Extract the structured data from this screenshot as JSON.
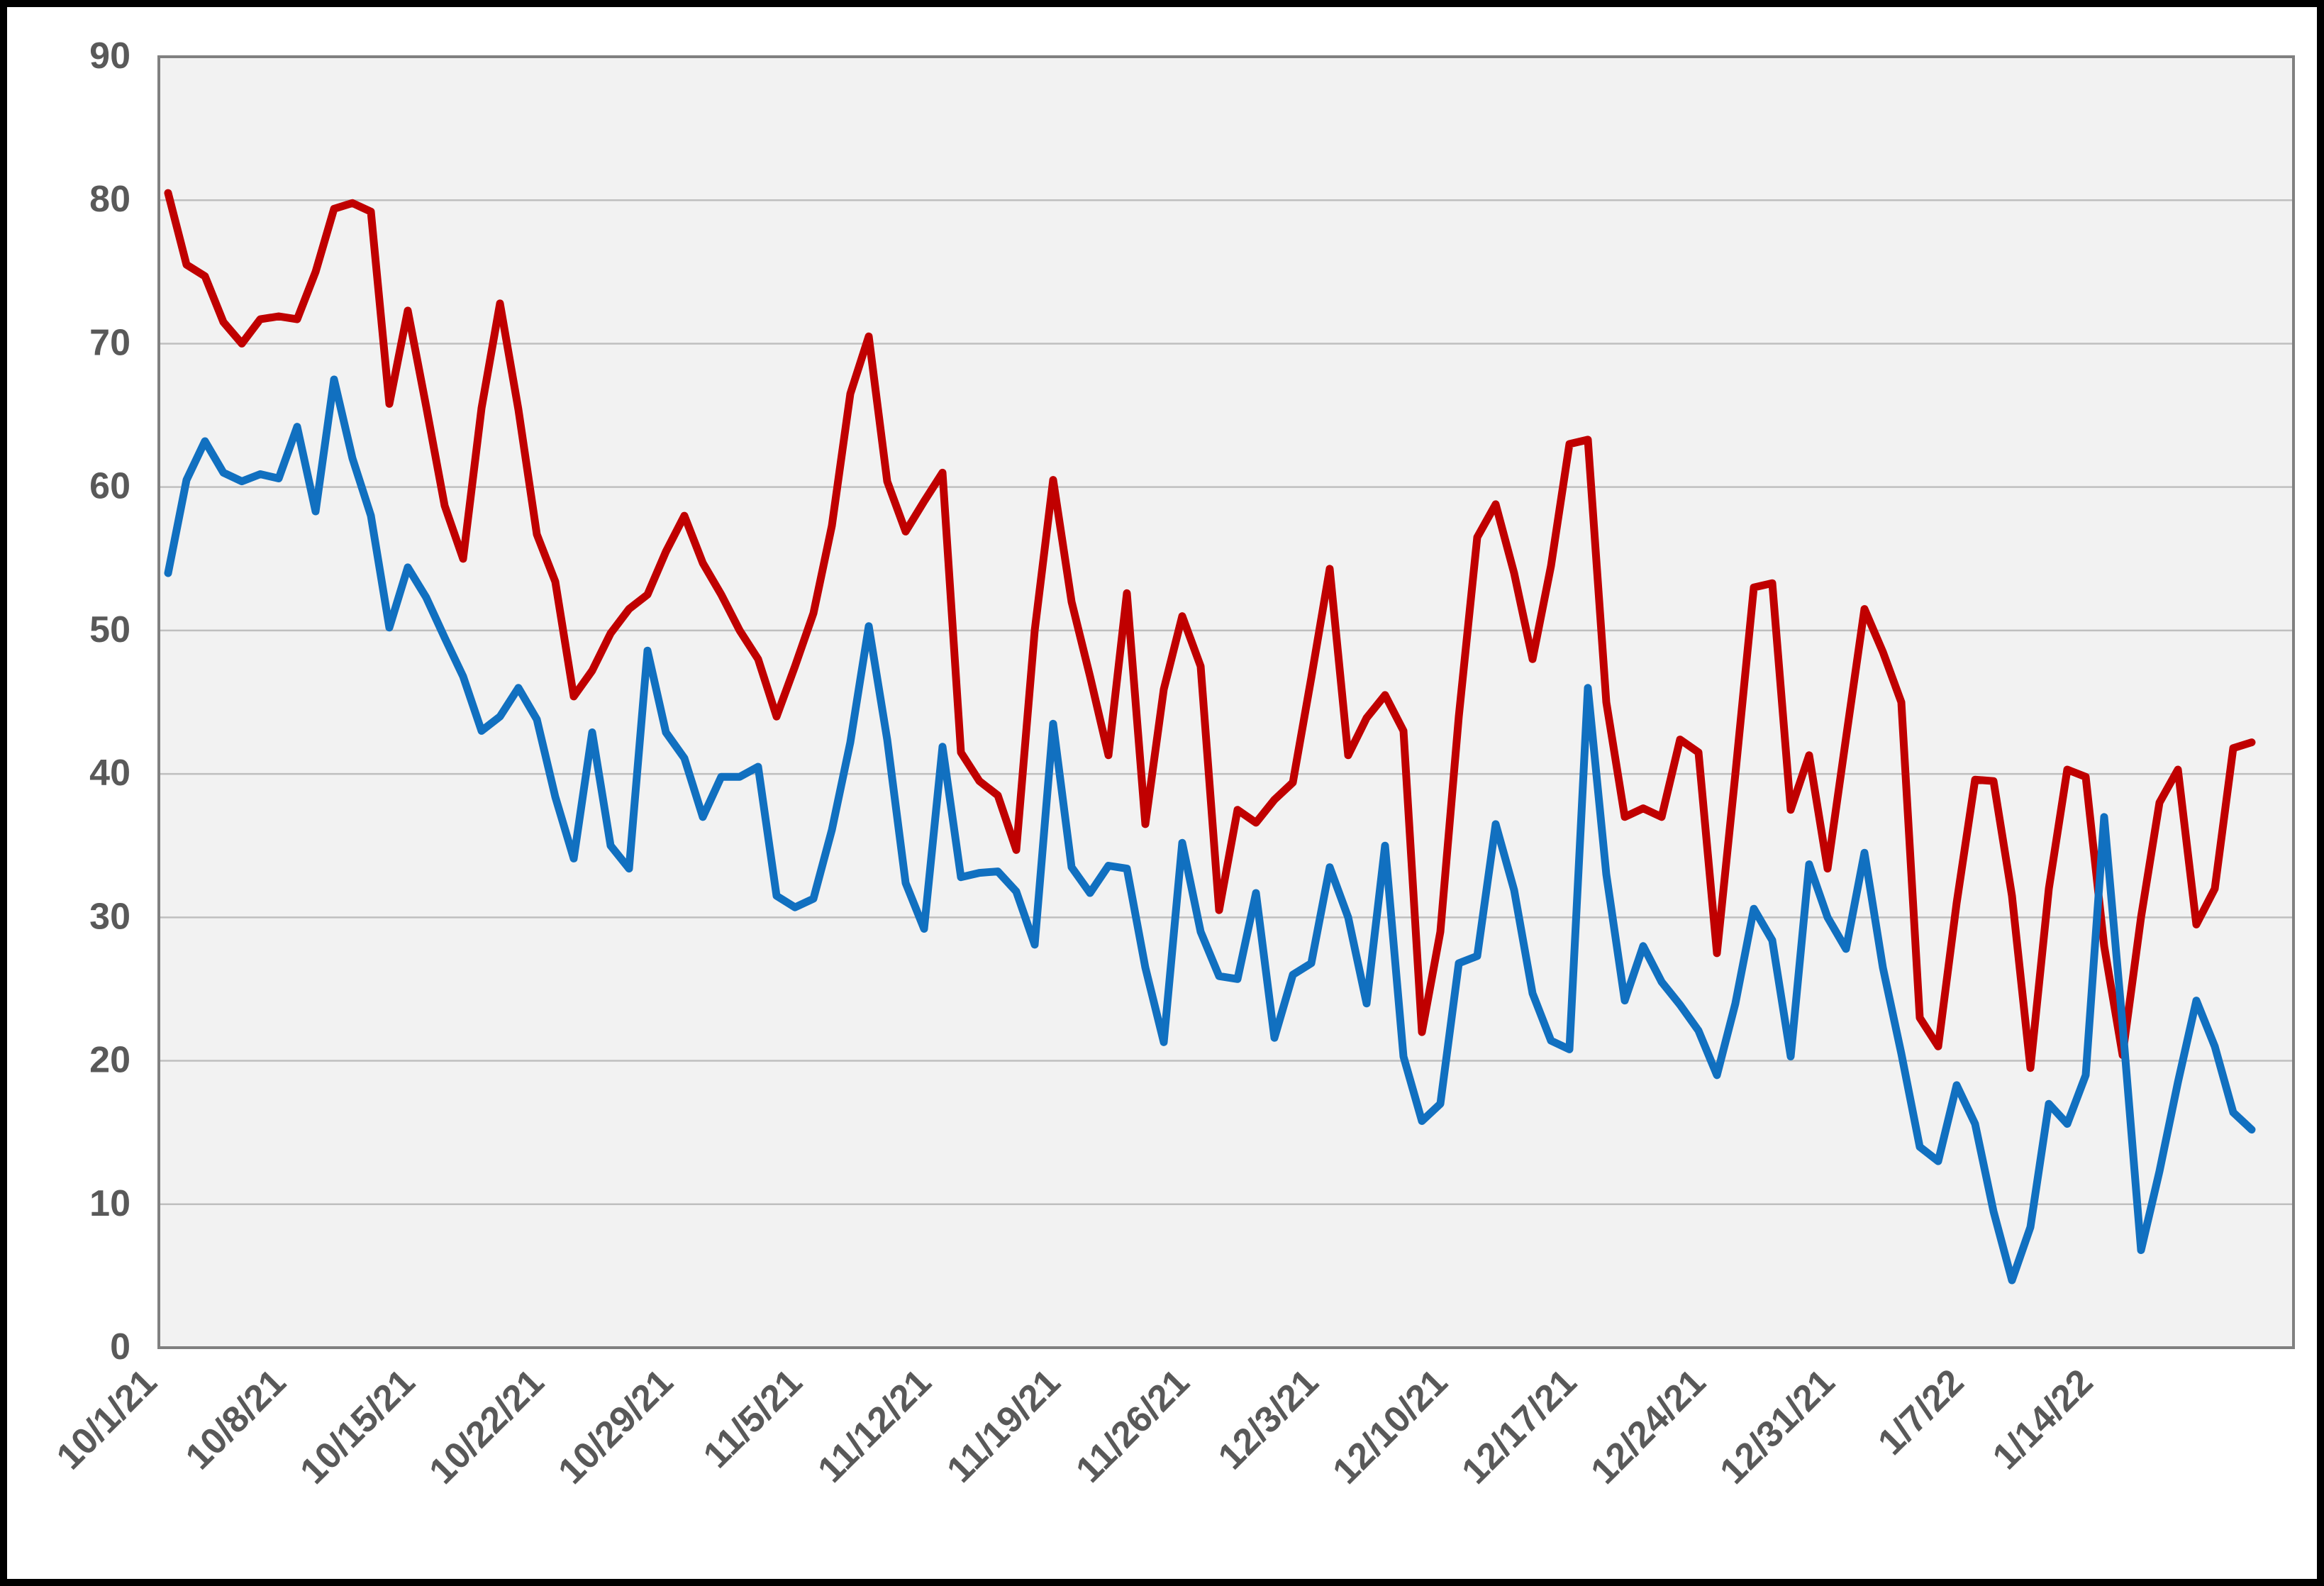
{
  "chart_data": {
    "type": "line",
    "title": "",
    "xlabel": "",
    "ylabel": "",
    "y_axis": {
      "min": 0,
      "max": 90,
      "tick_step": 10,
      "tick_labels": [
        "0",
        "10",
        "20",
        "30",
        "40",
        "50",
        "60",
        "70",
        "80",
        "90"
      ]
    },
    "x_axis": {
      "tick_every_n_points": 7,
      "tick_labels": [
        "10/1/21",
        "10/8/21",
        "10/15/21",
        "10/22/21",
        "10/29/21",
        "11/5/21",
        "11/12/21",
        "11/19/21",
        "11/26/21",
        "12/3/21",
        "12/10/21",
        "12/17/21",
        "12/24/21",
        "12/31/21",
        "1/7/22",
        "1/14/22"
      ]
    },
    "grid": "horizontal",
    "legend": "none",
    "plot_bg_color": "#F2F2F2",
    "gridline_color": "#BFBFBF",
    "axis_line_color": "#808080",
    "tick_label_color": "#595959",
    "series": [
      {
        "name": "red_series",
        "color": "#C00000",
        "values": [
          80.5,
          75.5,
          74.7,
          71.5,
          70.0,
          71.7,
          71.9,
          71.7,
          75.0,
          79.4,
          79.8,
          79.2,
          65.8,
          72.3,
          65.6,
          58.7,
          55.0,
          65.5,
          72.8,
          65.4,
          56.7,
          53.4,
          45.4,
          47.2,
          49.8,
          51.5,
          52.5,
          55.5,
          58.0,
          54.7,
          52.5,
          50.0,
          48.0,
          44.0,
          47.5,
          51.2,
          57.3,
          66.5,
          70.5,
          60.4,
          56.9,
          59.0,
          61.0,
          41.5,
          39.5,
          38.5,
          34.7,
          50.0,
          60.5,
          52.0,
          46.8,
          41.3,
          52.6,
          36.5,
          45.9,
          51.0,
          47.5,
          30.5,
          37.5,
          36.6,
          38.2,
          39.4,
          46.7,
          54.3,
          41.3,
          43.9,
          45.5,
          43.0,
          22.0,
          29.0,
          44.0,
          56.5,
          58.8,
          54.0,
          48.0,
          54.5,
          63.0,
          63.3,
          45.0,
          37.0,
          37.6,
          37.0,
          42.4,
          41.5,
          27.5,
          40.0,
          53.0,
          53.3,
          37.5,
          41.3,
          33.4,
          42.5,
          51.5,
          48.5,
          45.0,
          23.0,
          21.0,
          31.0,
          39.6,
          39.5,
          31.5,
          19.5,
          32.0,
          40.3,
          39.8,
          28.0,
          20.4,
          30.0,
          38.0,
          40.3,
          29.5,
          32.0,
          41.8,
          42.2
        ]
      },
      {
        "name": "blue_series",
        "color": "#1170C0",
        "values": [
          54.0,
          60.5,
          63.2,
          61.0,
          60.4,
          60.9,
          60.6,
          64.2,
          58.3,
          67.5,
          62.0,
          58.0,
          50.2,
          54.4,
          52.3,
          49.5,
          46.8,
          43.0,
          44.0,
          46.0,
          43.8,
          38.4,
          34.1,
          42.9,
          35.0,
          33.4,
          48.6,
          42.9,
          41.1,
          37.0,
          39.8,
          39.8,
          40.5,
          31.5,
          30.7,
          31.3,
          36.1,
          42.2,
          50.3,
          42.4,
          32.4,
          29.2,
          41.9,
          32.8,
          33.1,
          33.2,
          31.8,
          28.1,
          43.5,
          33.5,
          31.7,
          33.6,
          33.4,
          26.5,
          21.3,
          35.2,
          29.0,
          25.9,
          25.7,
          31.7,
          21.6,
          26.0,
          26.8,
          33.5,
          30.0,
          24.0,
          35.0,
          20.3,
          15.8,
          17.0,
          26.8,
          27.3,
          36.5,
          31.9,
          24.7,
          21.4,
          20.8,
          46.0,
          33.0,
          24.2,
          28.0,
          25.5,
          23.9,
          22.1,
          19.0,
          24.0,
          30.6,
          28.4,
          20.3,
          33.7,
          30.0,
          27.8,
          34.5,
          26.5,
          20.5,
          14.0,
          13.0,
          18.3,
          15.6,
          9.5,
          4.7,
          8.4,
          17.0,
          15.6,
          19.0,
          37.0,
          22.5,
          6.8,
          12.3,
          18.5,
          24.2,
          21.0,
          16.4,
          15.2
        ]
      }
    ]
  }
}
